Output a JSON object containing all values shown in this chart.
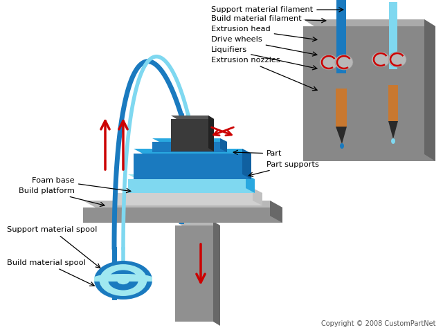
{
  "bg_color": "#ffffff",
  "gray_box_color": "#888888",
  "gray_box_dark": "#666666",
  "gray_box_light": "#aaaaaa",
  "blue_dark": "#1a7abf",
  "blue_mid": "#29a8e0",
  "blue_light": "#7fd8f0",
  "cyan_light": "#a0e8f0",
  "orange": "#c87830",
  "dark_gray": "#444444",
  "red": "#cc0000",
  "platform_gray": "#909090",
  "platform_dark": "#686868",
  "platform_light": "#b8b8b8",
  "head_dark": "#3a3a3a",
  "head_mid": "#555555",
  "copyright": "Copyright © 2008 CustomPartNet",
  "labels_left": [
    "Foam base",
    "Build platform",
    "Support material spool",
    "Build material spool"
  ],
  "labels_right": [
    "Support material filament",
    "Build material filament",
    "Extrusion head",
    "Drive wheels",
    "Liquifiers",
    "Extrusion nozzles"
  ],
  "label_part": "Part",
  "label_part_supports": "Part supports"
}
